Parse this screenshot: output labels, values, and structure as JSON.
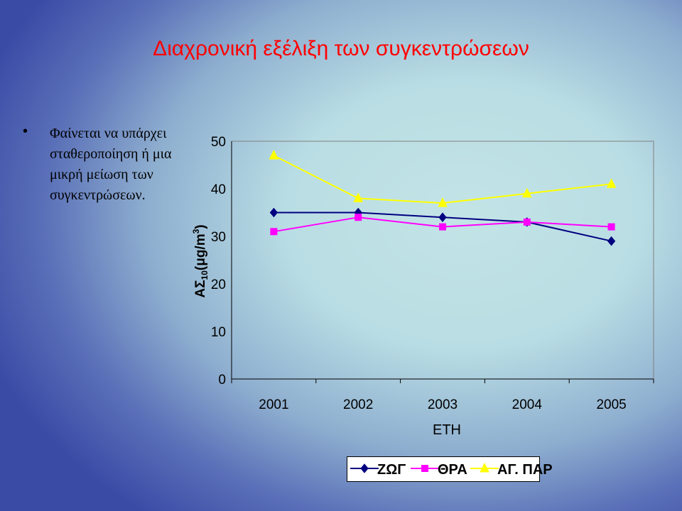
{
  "slide": {
    "title": "Διαχρονική εξέλιξη των συγκεντρώσεων",
    "bullet": "Φαίνεται να υπάρχει σταθεροποίηση ή μια μικρή μείωση των συγκεντρώσεων."
  },
  "chart_data": {
    "type": "line",
    "title": "",
    "xlabel": "ΕΤΗ",
    "ylabel_main": "ΑΣ",
    "ylabel_sub": "10",
    "ylabel_unit": "(μg/m",
    "ylabel_sup": "3",
    "ylabel_close": ")",
    "categories": [
      "2001",
      "2002",
      "2003",
      "2004",
      "2005"
    ],
    "ylim": [
      0,
      50
    ],
    "yticks": [
      0,
      10,
      20,
      30,
      40,
      50
    ],
    "grid": false,
    "legend_position": "bottom",
    "series": [
      {
        "name": "ΖΩΓ",
        "values": [
          35,
          35,
          34,
          33,
          29
        ],
        "color": "#000080",
        "marker": "diamond"
      },
      {
        "name": "ΘΡΑ",
        "values": [
          31,
          34,
          32,
          33,
          32
        ],
        "color": "#ff00ff",
        "marker": "square"
      },
      {
        "name": "ΑΓ. ΠΑΡ",
        "values": [
          47,
          38,
          37,
          39,
          41
        ],
        "color": "#ffff00",
        "marker": "triangle"
      }
    ]
  }
}
